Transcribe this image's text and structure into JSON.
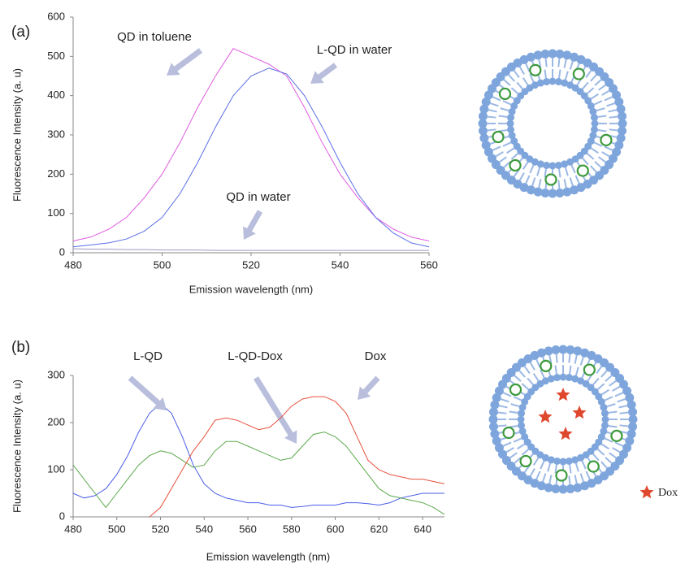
{
  "chart_data": [
    {
      "type": "line",
      "panel_label": "(a)",
      "y_label": "Fluorescence Intensity (a. u)",
      "x_label": "Emission wavelength (nm)",
      "x": [
        480,
        484,
        488,
        492,
        496,
        500,
        504,
        508,
        512,
        516,
        520,
        524,
        528,
        532,
        536,
        540,
        544,
        548,
        552,
        556,
        560
      ],
      "xlim": [
        480,
        560
      ],
      "xticks": [
        480,
        500,
        520,
        540,
        560
      ],
      "ylim": [
        0,
        600
      ],
      "yticks": [
        0,
        100,
        200,
        300,
        400,
        500,
        600
      ],
      "series": [
        {
          "name": "QD in toluene",
          "color": "#e05ce0",
          "values": [
            30,
            40,
            60,
            90,
            140,
            200,
            280,
            370,
            450,
            520,
            500,
            480,
            450,
            370,
            280,
            200,
            140,
            90,
            60,
            40,
            30
          ]
        },
        {
          "name": "L-QD in water",
          "color": "#5b6ee6",
          "values": [
            15,
            20,
            25,
            35,
            55,
            90,
            150,
            230,
            320,
            400,
            450,
            470,
            455,
            400,
            320,
            230,
            150,
            90,
            50,
            25,
            15
          ]
        },
        {
          "name": "QD in water",
          "color": "#9a9ac8",
          "values": [
            10,
            9,
            9,
            8,
            8,
            7,
            7,
            7,
            6,
            6,
            6,
            6,
            6,
            6,
            6,
            6,
            6,
            6,
            6,
            6,
            6
          ]
        }
      ]
    },
    {
      "type": "line",
      "panel_label": "(b)",
      "y_label": "Fluorescence Intensity (a. u)",
      "x_label": "Emission wavelength (nm)",
      "x": [
        480,
        485,
        490,
        495,
        500,
        505,
        510,
        515,
        520,
        525,
        530,
        535,
        540,
        545,
        550,
        555,
        560,
        565,
        570,
        575,
        580,
        585,
        590,
        595,
        600,
        605,
        610,
        615,
        620,
        625,
        630,
        635,
        640,
        645,
        650
      ],
      "xlim": [
        480,
        650
      ],
      "xticks": [
        480,
        500,
        520,
        540,
        560,
        580,
        600,
        620,
        640
      ],
      "ylim": [
        0,
        300
      ],
      "yticks": [
        0,
        100,
        200,
        300
      ],
      "series": [
        {
          "name": "L-QD",
          "color": "#4a5ee8",
          "values": [
            50,
            40,
            45,
            60,
            90,
            130,
            180,
            220,
            240,
            220,
            170,
            110,
            70,
            50,
            40,
            35,
            30,
            30,
            25,
            25,
            20,
            22,
            25,
            25,
            25,
            30,
            30,
            28,
            25,
            30,
            40,
            45,
            50,
            50,
            50
          ]
        },
        {
          "name": "L-QD-Dox",
          "color": "#5aa84a",
          "values": [
            110,
            80,
            50,
            20,
            50,
            80,
            110,
            130,
            140,
            135,
            120,
            105,
            110,
            140,
            160,
            160,
            150,
            140,
            130,
            120,
            125,
            150,
            175,
            180,
            170,
            150,
            120,
            90,
            60,
            45,
            40,
            35,
            30,
            20,
            5
          ]
        },
        {
          "name": "Dox",
          "color": "#e8503c",
          "values": [
            null,
            null,
            null,
            null,
            null,
            null,
            null,
            0,
            20,
            60,
            100,
            140,
            170,
            205,
            210,
            205,
            195,
            185,
            190,
            210,
            235,
            250,
            255,
            255,
            245,
            220,
            170,
            120,
            100,
            90,
            85,
            80,
            80,
            75,
            70
          ]
        }
      ]
    }
  ],
  "diagram_b": {
    "label": "Dox"
  }
}
